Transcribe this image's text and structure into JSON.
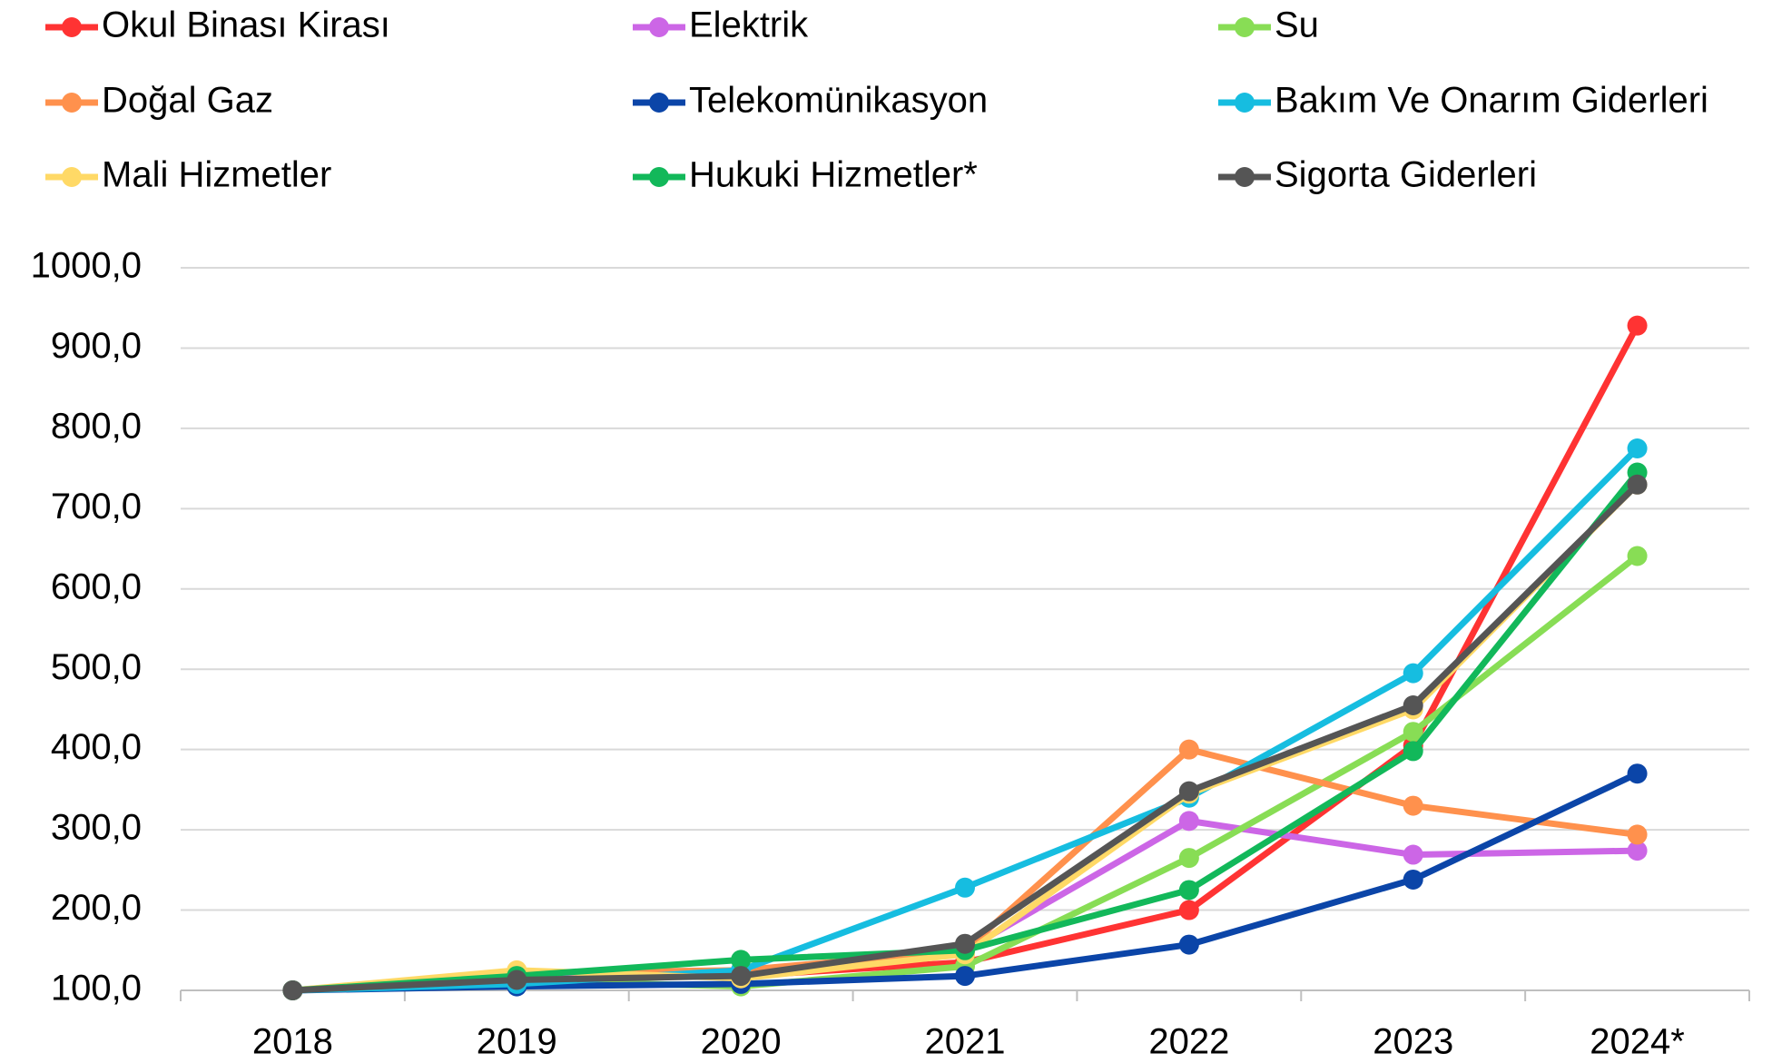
{
  "chart_data": {
    "type": "line",
    "categories": [
      "2018",
      "2019",
      "2020",
      "2021",
      "2022",
      "2023",
      "2024*"
    ],
    "series": [
      {
        "name": "Okul Binası Kirası",
        "color": "#ff3333",
        "values": [
          100,
          115,
          118,
          135,
          200,
          405,
          928
        ]
      },
      {
        "name": "Elektrik",
        "color": "#cc66e6",
        "values": [
          100,
          115,
          120,
          150,
          311,
          269,
          274
        ]
      },
      {
        "name": "Su",
        "color": "#88dd55",
        "values": [
          100,
          112,
          105,
          130,
          265,
          422,
          641
        ]
      },
      {
        "name": "Doğal Gaz",
        "color": "#ff914d",
        "values": [
          100,
          122,
          125,
          150,
          400,
          330,
          294
        ]
      },
      {
        "name": "Telekomünikasyon",
        "color": "#0b45a8",
        "values": [
          100,
          105,
          108,
          118,
          157,
          238,
          370
        ]
      },
      {
        "name": "Bakım Ve Onarım Giderleri",
        "color": "#16bde0",
        "values": [
          100,
          108,
          125,
          228,
          340,
          495,
          775
        ]
      },
      {
        "name": "Mali Hizmetler",
        "color": "#ffd966",
        "values": [
          100,
          125,
          115,
          145,
          345,
          450,
          730
        ]
      },
      {
        "name": "Hukuki Hizmetler*",
        "color": "#12b85a",
        "values": [
          100,
          118,
          138,
          150,
          225,
          398,
          745
        ]
      },
      {
        "name": "Sigorta Giderleri",
        "color": "#555555",
        "values": [
          100,
          113,
          118,
          158,
          348,
          455,
          730
        ]
      }
    ],
    "ylim": [
      100,
      1000
    ],
    "yticks": [
      {
        "value": 100,
        "label": "100,0"
      },
      {
        "value": 200,
        "label": "200,0"
      },
      {
        "value": 300,
        "label": "300,0"
      },
      {
        "value": 400,
        "label": "400,0"
      },
      {
        "value": 500,
        "label": "500,0"
      },
      {
        "value": 600,
        "label": "600,0"
      },
      {
        "value": 700,
        "label": "700,0"
      },
      {
        "value": 800,
        "label": "800,0"
      },
      {
        "value": 900,
        "label": "900,0"
      },
      {
        "value": 1000,
        "label": "1000,0"
      }
    ],
    "grid": true,
    "legend": "top"
  }
}
